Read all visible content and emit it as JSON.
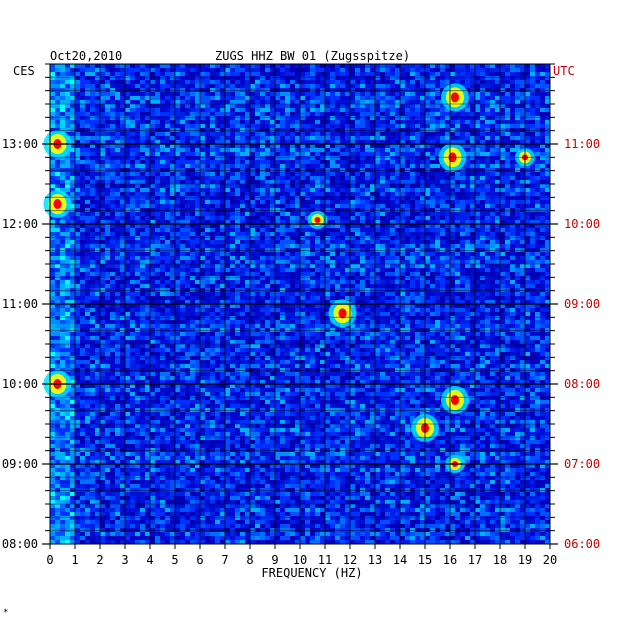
{
  "header": {
    "date": "Oct20,2010",
    "station": "ZUGS HHZ BW 01 (Zugsspitze)"
  },
  "footer": {
    "mark": "*"
  },
  "chart_data": {
    "type": "heatmap",
    "title": "ZUGS HHZ BW 01 (Zugsspitze)",
    "xlabel": "FREQUENCY (HZ)",
    "ylabel_left": "CES",
    "ylabel_right": "UTC",
    "xlim": [
      0,
      20
    ],
    "x_ticks": [
      "0",
      "1",
      "2",
      "3",
      "4",
      "5",
      "6",
      "7",
      "8",
      "9",
      "10",
      "11",
      "12",
      "13",
      "14",
      "15",
      "16",
      "17",
      "18",
      "19",
      "20"
    ],
    "y_range_local": [
      "08:00",
      "14:00"
    ],
    "y_ticks_local": [
      "13:00",
      "12:00",
      "11:00",
      "10:00",
      "09:00",
      "08:00"
    ],
    "y_ticks_utc": [
      "11:00",
      "10:00",
      "09:00",
      "08:00",
      "07:00",
      "06:00"
    ],
    "grid": true,
    "colors": {
      "background": "#0000c8",
      "low": "#0010d8",
      "mid": "#0080ff",
      "high": "#00ffff",
      "peak_low": "#ffff00",
      "peak_high": "#ff0000",
      "grid": "#000000",
      "utc_label": "#cc0000"
    },
    "hotspots": [
      {
        "freq_hz": 16.2,
        "time_local": "13:35",
        "intensity": "high"
      },
      {
        "freq_hz": 16.1,
        "time_local": "12:50",
        "intensity": "high"
      },
      {
        "freq_hz": 11.7,
        "time_local": "10:53",
        "intensity": "high"
      },
      {
        "freq_hz": 16.2,
        "time_local": "09:48",
        "intensity": "high"
      },
      {
        "freq_hz": 15.0,
        "time_local": "09:27",
        "intensity": "high"
      },
      {
        "freq_hz": 16.2,
        "time_local": "09:00",
        "intensity": "medium"
      },
      {
        "freq_hz": 0.3,
        "time_local": "10:00",
        "intensity": "high"
      },
      {
        "freq_hz": 0.3,
        "time_local": "13:00",
        "intensity": "high"
      },
      {
        "freq_hz": 0.3,
        "time_local": "12:15",
        "intensity": "high"
      },
      {
        "freq_hz": 19.0,
        "time_local": "12:50",
        "intensity": "medium"
      },
      {
        "freq_hz": 10.7,
        "time_local": "12:03",
        "intensity": "medium"
      }
    ]
  }
}
